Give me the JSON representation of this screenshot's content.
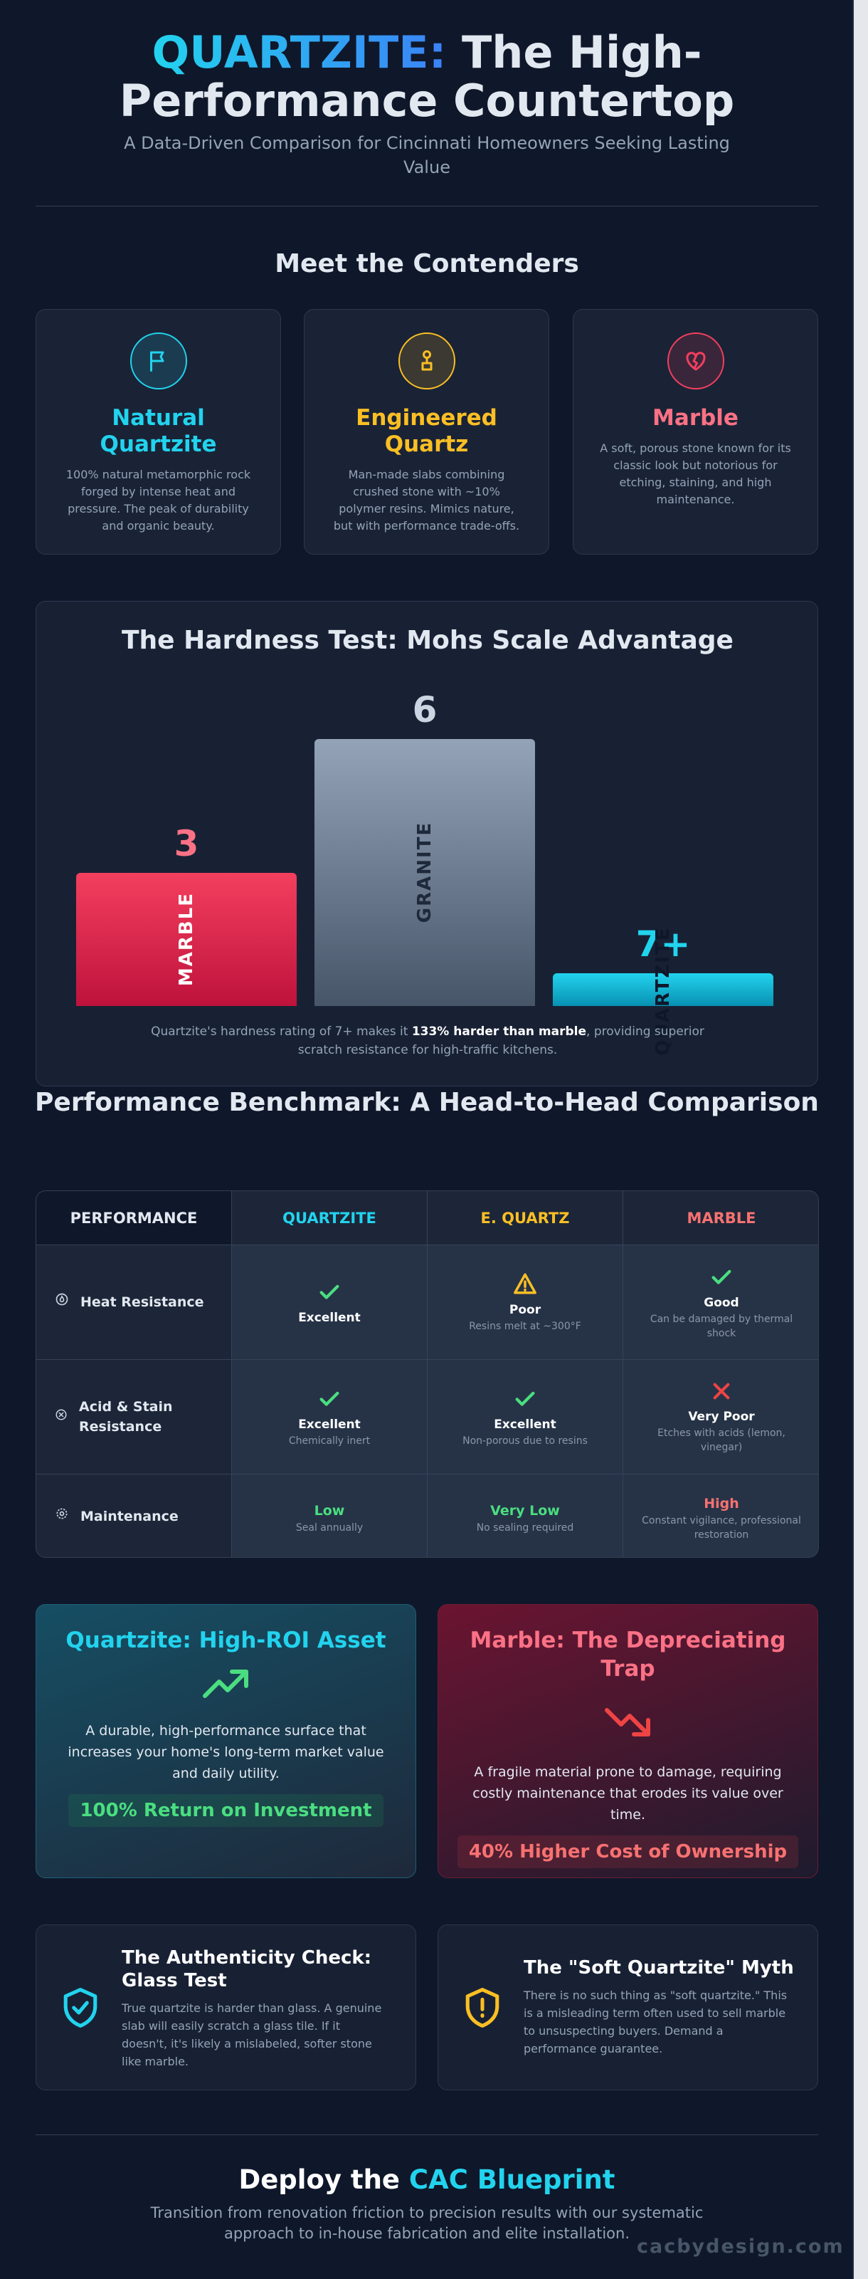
{
  "header": {
    "title_accent": "QUARTZITE:",
    "title_rest": "The High-Performance Countertop",
    "subtitle": "A Data-Driven Comparison for Cincinnati Homeowners Seeking Lasting Value"
  },
  "contenders": {
    "heading": "Meet the Contenders",
    "items": [
      {
        "name": "Natural Quartzite",
        "icon": "flag-icon",
        "color": "#22d3ee",
        "description": "100% natural metamorphic rock forged by intense heat and pressure. The peak of durability and organic beauty."
      },
      {
        "name": "Engineered Quartz",
        "icon": "person-icon",
        "color": "#fbbf24",
        "description": "Man-made slabs combining crushed stone with ~10% polymer resins. Mimics nature, but with performance trade-offs."
      },
      {
        "name": "Marble",
        "icon": "broken-heart-icon",
        "color": "#f43f5e",
        "description": "A soft, porous stone known for its classic look but notorious for etching, staining, and high maintenance."
      }
    ]
  },
  "hardness": {
    "heading": "The Hardness Test: Mohs Scale Advantage",
    "caption_pre": "Quartzite's hardness rating of 7+ makes it ",
    "caption_bold": "133% harder than marble",
    "caption_post": ", providing superior scratch resistance for high-traffic kitchens."
  },
  "chart_data": {
    "type": "bar",
    "categories": [
      "MARBLE",
      "GRANITE",
      "QUARTZITE"
    ],
    "value_labels": [
      "3",
      "6",
      "7+"
    ],
    "values": [
      3,
      6,
      7
    ],
    "colors": [
      "#f43f5e",
      "#94a3b8",
      "#22d3ee"
    ]
  },
  "benchmark": {
    "heading": "Performance Benchmark: A Head-to-Head Comparison",
    "columns": [
      "PERFORMANCE",
      "QUARTZITE",
      "E. QUARTZ",
      "MARBLE"
    ],
    "column_colors": [
      "#ffffff",
      "#22d3ee",
      "#fbbf24",
      "#f87171"
    ],
    "rows": [
      {
        "label": "Heat Resistance",
        "icon": "flame-icon",
        "cells": [
          {
            "status": "check",
            "main": "Excellent",
            "sub": ""
          },
          {
            "status": "warning",
            "main": "Poor",
            "sub": "Resins melt at ~300°F"
          },
          {
            "status": "check",
            "main": "Good",
            "sub": "Can be damaged by thermal shock"
          }
        ]
      },
      {
        "label": "Acid & Stain Resistance",
        "icon": "droplet-icon",
        "cells": [
          {
            "status": "check",
            "main": "Excellent",
            "sub": "Chemically inert"
          },
          {
            "status": "check",
            "main": "Excellent",
            "sub": "Non-porous due to resins"
          },
          {
            "status": "cross",
            "main": "Very Poor",
            "sub": "Etches with acids (lemon, vinegar)"
          }
        ]
      },
      {
        "label": "Maintenance",
        "icon": "gear-icon",
        "cells": [
          {
            "status": "text",
            "main": "Low",
            "color": "#4ade80",
            "sub": "Seal annually"
          },
          {
            "status": "text",
            "main": "Very Low",
            "color": "#4ade80",
            "sub": "No sealing required"
          },
          {
            "status": "text",
            "main": "High",
            "color": "#f87171",
            "sub": "Constant vigilance, professional restoration"
          }
        ]
      }
    ]
  },
  "roi": {
    "left": {
      "title": "Quartzite: High-ROI Asset",
      "icon": "trend-up-icon",
      "description": "A durable, high-performance surface that increases your home's long-term market value and daily utility.",
      "pill": "100% Return on Investment"
    },
    "right": {
      "title": "Marble: The Depreciating Trap",
      "icon": "trend-down-icon",
      "description": "A fragile material prone to damage, requiring costly maintenance that erodes its value over time.",
      "pill": "40% Higher Cost of Ownership"
    }
  },
  "myths": {
    "left": {
      "title": "The Authenticity Check: Glass Test",
      "icon": "shield-check-icon",
      "description": "True quartzite is harder than glass. A genuine slab will easily scratch a glass tile. If it doesn't, it's likely a mislabeled, softer stone like marble."
    },
    "right": {
      "title": "The \"Soft Quartzite\" Myth",
      "icon": "shield-alert-icon",
      "description": "There is no such thing as \"soft quartzite.\" This is a misleading term often used to sell marble to unsuspecting buyers. Demand a performance guarantee."
    }
  },
  "footer": {
    "title_pre": "Deploy the ",
    "title_accent": "CAC Blueprint",
    "description": "Transition from renovation friction to precision results with our systematic approach to in-house fabrication and elite installation.",
    "watermark": "cacbydesign.com"
  }
}
